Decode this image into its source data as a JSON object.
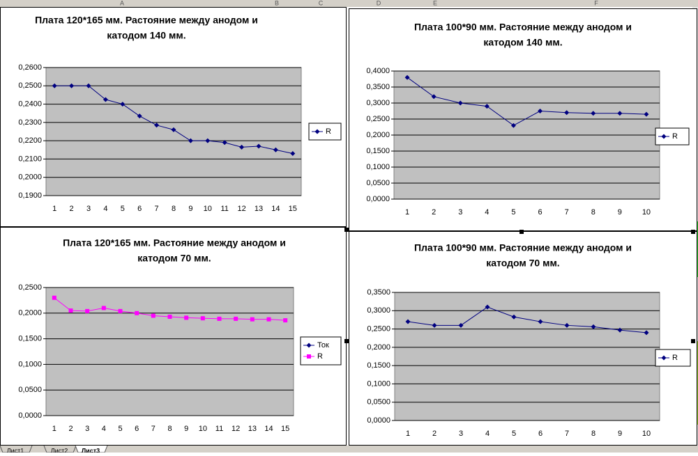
{
  "columns": [
    "A",
    "B",
    "C",
    "D",
    "E",
    "F"
  ],
  "sheet_tabs": [
    "Лист1",
    "Лист2",
    "Лист3"
  ],
  "chart_data": [
    {
      "type": "line",
      "title": "Плата 120*165 мм. Растояние между анодом и",
      "subtitle": "катодом 140 мм.",
      "categories": [
        "1",
        "2",
        "3",
        "4",
        "5",
        "6",
        "7",
        "8",
        "9",
        "10",
        "11",
        "12",
        "13",
        "14",
        "15"
      ],
      "series": [
        {
          "name": "R",
          "color": "#000080",
          "marker": "diamond",
          "values": [
            0.25,
            0.25,
            0.25,
            0.2425,
            0.24,
            0.2335,
            0.2285,
            0.226,
            0.22,
            0.22,
            0.219,
            0.2165,
            0.217,
            0.215,
            0.213
          ]
        }
      ],
      "ylim": [
        0.19,
        0.26
      ],
      "yticks": [
        {
          "value": 0.19,
          "label": "0,1900"
        },
        {
          "value": 0.2,
          "label": "0,2000"
        },
        {
          "value": 0.21,
          "label": "0,2100"
        },
        {
          "value": 0.22,
          "label": "0,2200"
        },
        {
          "value": 0.23,
          "label": "0,2300"
        },
        {
          "value": 0.24,
          "label": "0,2400"
        },
        {
          "value": 0.25,
          "label": "0,2500"
        },
        {
          "value": 0.26,
          "label": "0,2600"
        }
      ],
      "grid": true,
      "legend": "right"
    },
    {
      "type": "line",
      "title": "Плата 100*90 мм. Растояние между анодом и",
      "subtitle": "катодом 140 мм.",
      "categories": [
        "1",
        "2",
        "3",
        "4",
        "5",
        "6",
        "7",
        "8",
        "9",
        "10"
      ],
      "series": [
        {
          "name": "R",
          "color": "#000080",
          "marker": "diamond",
          "values": [
            0.38,
            0.32,
            0.3,
            0.29,
            0.23,
            0.275,
            0.27,
            0.268,
            0.268,
            0.265
          ]
        }
      ],
      "ylim": [
        0,
        0.4
      ],
      "yticks": [
        {
          "value": 0,
          "label": "0,0000"
        },
        {
          "value": 0.05,
          "label": "0,0500"
        },
        {
          "value": 0.1,
          "label": "0,1000"
        },
        {
          "value": 0.15,
          "label": "0,1500"
        },
        {
          "value": 0.2,
          "label": "0,2000"
        },
        {
          "value": 0.25,
          "label": "0,2500"
        },
        {
          "value": 0.3,
          "label": "0,3000"
        },
        {
          "value": 0.35,
          "label": "0,3500"
        },
        {
          "value": 0.4,
          "label": "0,4000"
        }
      ],
      "grid": true,
      "legend": "right"
    },
    {
      "type": "line",
      "title": "Плата 120*165 мм. Растояние между анодом и",
      "subtitle": "катодом 70 мм.",
      "categories": [
        "1",
        "2",
        "3",
        "4",
        "5",
        "6",
        "7",
        "8",
        "9",
        "10",
        "11",
        "12",
        "13",
        "14",
        "15"
      ],
      "series": [
        {
          "name": "Ток",
          "color": "#000080",
          "marker": "diamond",
          "values": [
            null,
            null,
            null,
            null,
            null,
            null,
            null,
            null,
            null,
            null,
            null,
            null,
            null,
            null,
            null
          ]
        },
        {
          "name": "R",
          "color": "#ff00ff",
          "marker": "square",
          "values": [
            0.23,
            0.205,
            0.204,
            0.21,
            0.204,
            0.2,
            0.195,
            0.193,
            0.191,
            0.19,
            0.189,
            0.189,
            0.188,
            0.188,
            0.186
          ]
        }
      ],
      "ylim": [
        0,
        0.25
      ],
      "yticks": [
        {
          "value": 0,
          "label": "0,0000"
        },
        {
          "value": 0.05,
          "label": "0,0500"
        },
        {
          "value": 0.1,
          "label": "0,1000"
        },
        {
          "value": 0.15,
          "label": "0,1500"
        },
        {
          "value": 0.2,
          "label": "0,2000"
        },
        {
          "value": 0.25,
          "label": "0,2500"
        }
      ],
      "grid": true,
      "legend": "right"
    },
    {
      "type": "line",
      "title": "Плата 100*90 мм. Растояние между анодом и",
      "subtitle": "катодом 70 мм.",
      "categories": [
        "1",
        "2",
        "3",
        "4",
        "5",
        "6",
        "7",
        "8",
        "9",
        "10"
      ],
      "series": [
        {
          "name": "R",
          "color": "#000080",
          "marker": "diamond",
          "values": [
            0.27,
            0.26,
            0.26,
            0.31,
            0.283,
            0.27,
            0.26,
            0.256,
            0.247,
            0.24
          ]
        }
      ],
      "ylim": [
        0,
        0.35
      ],
      "yticks": [
        {
          "value": 0,
          "label": "0,0000"
        },
        {
          "value": 0.05,
          "label": "0,0500"
        },
        {
          "value": 0.1,
          "label": "0,1000"
        },
        {
          "value": 0.15,
          "label": "0,1500"
        },
        {
          "value": 0.2,
          "label": "0,2000"
        },
        {
          "value": 0.25,
          "label": "0,2500"
        },
        {
          "value": 0.3,
          "label": "0,3000"
        },
        {
          "value": 0.35,
          "label": "0,3500"
        }
      ],
      "grid": true,
      "legend": "right"
    }
  ]
}
